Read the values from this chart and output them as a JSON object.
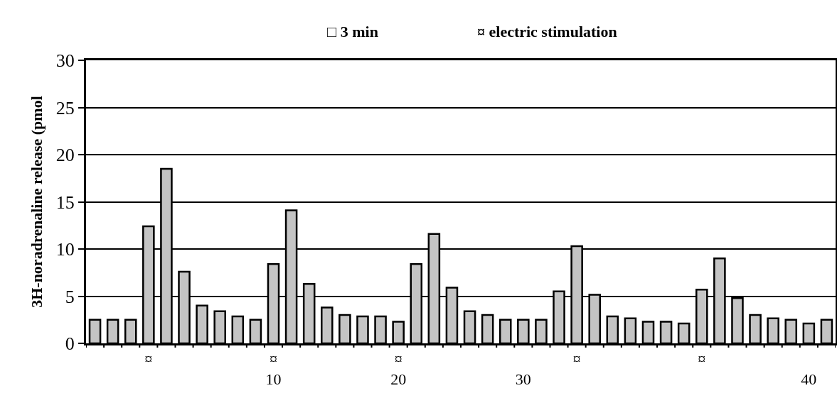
{
  "chart_data": {
    "type": "bar",
    "ylabel": "3H-noradrenaline release (pmol",
    "categories": [
      null,
      null,
      null,
      "¤",
      null,
      null,
      null,
      null,
      null,
      null,
      "¤\n10",
      null,
      null,
      null,
      null,
      null,
      null,
      "¤\n20",
      null,
      null,
      null,
      null,
      null,
      null,
      "\n30",
      null,
      null,
      "¤",
      null,
      null,
      null,
      null,
      null,
      null,
      "¤",
      null,
      null,
      null,
      null,
      null,
      "\n40",
      null
    ],
    "values": [
      2.5,
      2.5,
      2.5,
      12.4,
      18.5,
      7.6,
      4.0,
      3.4,
      2.85,
      2.5,
      8.4,
      14.1,
      6.3,
      3.8,
      3.0,
      2.85,
      2.85,
      2.3,
      8.4,
      11.6,
      5.9,
      3.4,
      3.0,
      2.5,
      2.5,
      2.5,
      5.5,
      10.3,
      5.15,
      2.85,
      2.65,
      2.3,
      2.3,
      2.1,
      5.7,
      9.0,
      4.8,
      3.0,
      2.65,
      2.5,
      2.1,
      2.5
    ],
    "color": "#c4c4c4",
    "ylim": [
      0,
      30
    ],
    "yticks": [
      0,
      5,
      10,
      15,
      20,
      25,
      30
    ],
    "grid": "y",
    "annotations": [
      "□ 3 min",
      "¤ electric stimulation"
    ]
  }
}
